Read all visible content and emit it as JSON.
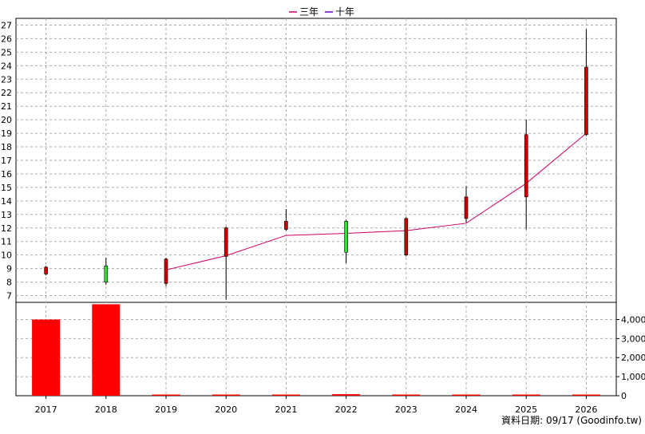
{
  "legend": {
    "items": [
      {
        "label": "三年",
        "color": "#cc0066"
      },
      {
        "label": "十年",
        "color": "#6600cc"
      }
    ]
  },
  "footer": {
    "text": "資料日期: 09/17  (Goodinfo.tw)"
  },
  "chart_data": {
    "type": "candlestick_with_volume",
    "categories": [
      "2017",
      "2018",
      "2019",
      "2020",
      "2021",
      "2022",
      "2023",
      "2024",
      "2025",
      "2026"
    ],
    "price_axis": {
      "ticks": [
        7,
        8,
        9,
        10,
        11,
        12,
        13,
        14,
        15,
        16,
        17,
        18,
        19,
        20,
        21,
        22,
        23,
        24,
        25,
        26,
        27
      ],
      "range": [
        6.5,
        27.5
      ]
    },
    "candles": [
      {
        "x": "2017",
        "open": 8.6,
        "close": 9.1,
        "high": 9.2,
        "low": 8.5,
        "color": "#cc0000"
      },
      {
        "x": "2018",
        "open": 9.2,
        "close": 8.0,
        "high": 9.8,
        "low": 7.8,
        "color": "#33dd33"
      },
      {
        "x": "2019",
        "open": 7.9,
        "close": 9.7,
        "high": 9.8,
        "low": 7.7,
        "color": "#cc0000"
      },
      {
        "x": "2020",
        "open": 9.9,
        "close": 12.0,
        "high": 12.1,
        "low": 6.7,
        "color": "#cc0000"
      },
      {
        "x": "2021",
        "open": 11.9,
        "close": 12.5,
        "high": 13.4,
        "low": 11.8,
        "color": "#cc0000"
      },
      {
        "x": "2022",
        "open": 12.5,
        "close": 10.2,
        "high": 12.6,
        "low": 9.4,
        "color": "#33dd33"
      },
      {
        "x": "2023",
        "open": 10.0,
        "close": 12.7,
        "high": 12.8,
        "low": 9.9,
        "color": "#cc0000"
      },
      {
        "x": "2024",
        "open": 12.7,
        "close": 14.3,
        "high": 15.1,
        "low": 12.4,
        "color": "#cc0000"
      },
      {
        "x": "2025",
        "open": 14.3,
        "close": 18.9,
        "high": 20.0,
        "low": 11.9,
        "color": "#cc0000"
      },
      {
        "x": "2026",
        "open": 18.9,
        "close": 23.9,
        "high": 26.7,
        "low": 18.8,
        "color": "#cc0000"
      }
    ],
    "series": [
      {
        "name": "三年",
        "color": "#cc0066",
        "points": [
          [
            "2019",
            8.9
          ],
          [
            "2020",
            9.95
          ],
          [
            "2021",
            11.45
          ],
          [
            "2022",
            11.6
          ],
          [
            "2023",
            11.8
          ],
          [
            "2024",
            12.35
          ],
          [
            "2025",
            15.3
          ],
          [
            "2026",
            19.0
          ]
        ]
      }
    ],
    "volume_axis": {
      "ticks": [
        0,
        1000,
        2000,
        3000,
        4000
      ],
      "tick_labels": [
        "0",
        "1,000",
        "2,000",
        "3,000",
        "4,000"
      ],
      "range": [
        0,
        4900
      ]
    },
    "volume": [
      {
        "x": "2017",
        "value": 4000
      },
      {
        "x": "2018",
        "value": 4800
      },
      {
        "x": "2019",
        "value": 30
      },
      {
        "x": "2020",
        "value": 30
      },
      {
        "x": "2021",
        "value": 30
      },
      {
        "x": "2022",
        "value": 80
      },
      {
        "x": "2023",
        "value": 30
      },
      {
        "x": "2024",
        "value": 30
      },
      {
        "x": "2025",
        "value": 30
      },
      {
        "x": "2026",
        "value": 30
      }
    ],
    "volume_color": "#ff0000",
    "grid": true
  }
}
